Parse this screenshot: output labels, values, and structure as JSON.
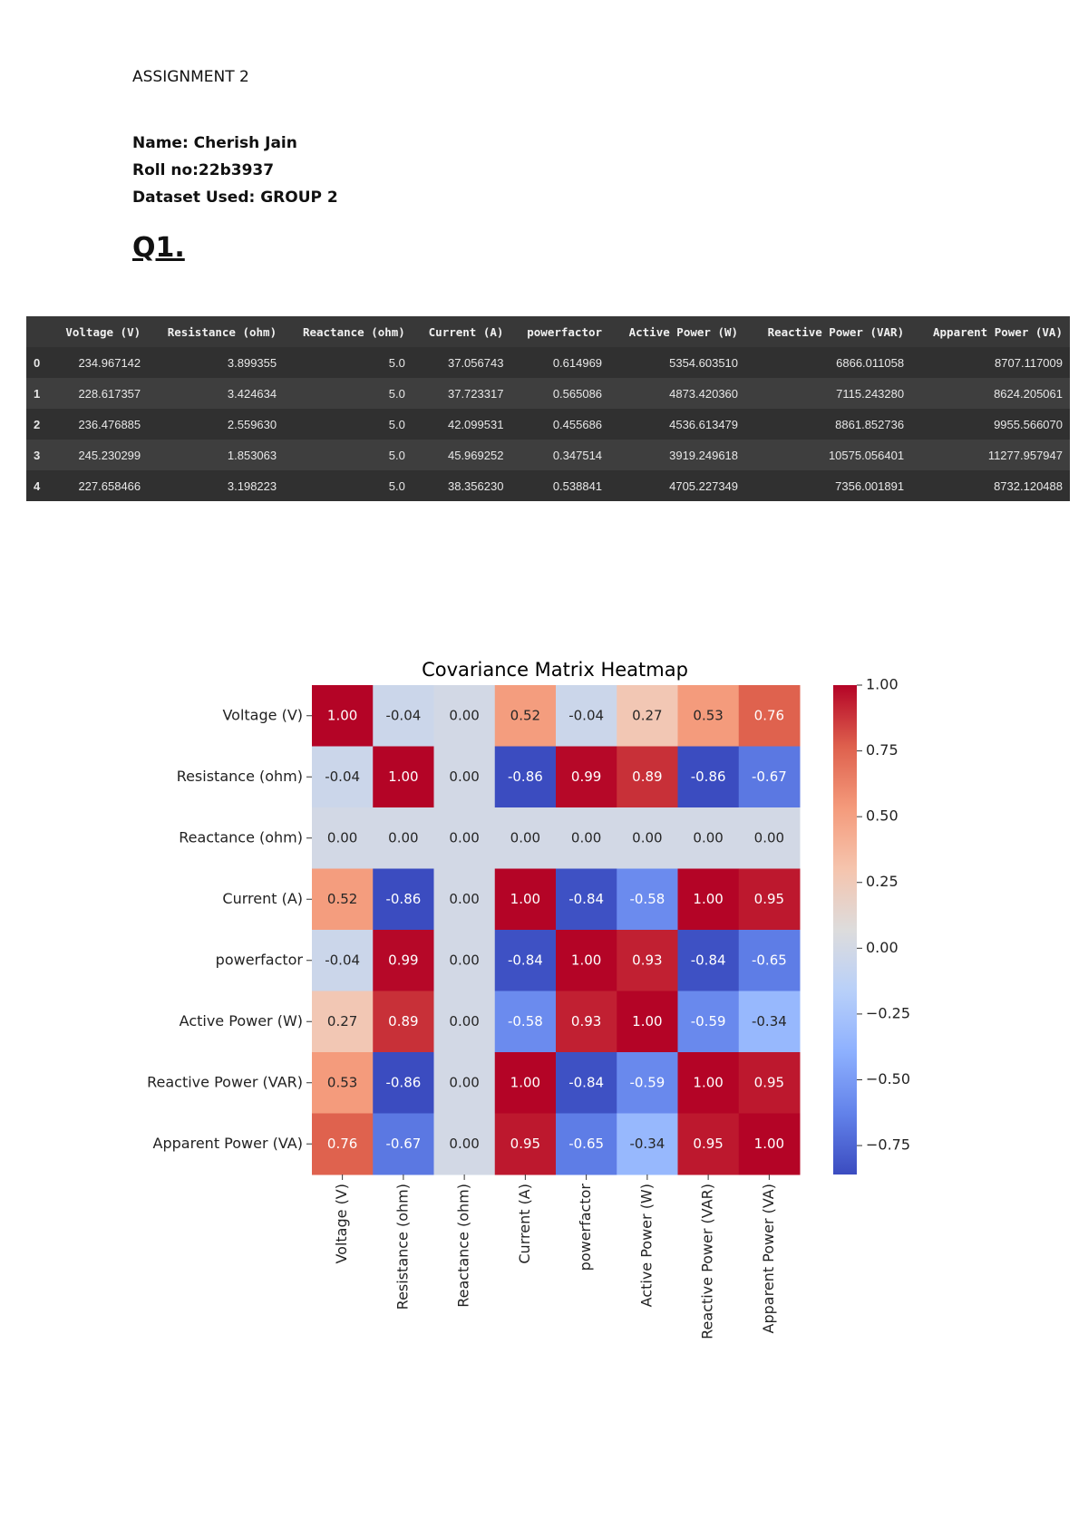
{
  "header": {
    "assignment": "ASSIGNMENT 2",
    "name": "Name: Cherish Jain",
    "roll": "Roll no:22b3937",
    "dataset": "Dataset Used: GROUP 2",
    "question": "Q1."
  },
  "table": {
    "columns": [
      "Voltage (V)",
      "Resistance (ohm)",
      "Reactance (ohm)",
      "Current (A)",
      "powerfactor",
      "Active Power (W)",
      "Reactive Power (VAR)",
      "Apparent Power (VA)"
    ],
    "rows": [
      [
        "0",
        "234.967142",
        "3.899355",
        "5.0",
        "37.056743",
        "0.614969",
        "5354.603510",
        "6866.011058",
        "8707.117009"
      ],
      [
        "1",
        "228.617357",
        "3.424634",
        "5.0",
        "37.723317",
        "0.565086",
        "4873.420360",
        "7115.243280",
        "8624.205061"
      ],
      [
        "2",
        "236.476885",
        "2.559630",
        "5.0",
        "42.099531",
        "0.455686",
        "4536.613479",
        "8861.852736",
        "9955.566070"
      ],
      [
        "3",
        "245.230299",
        "1.853063",
        "5.0",
        "45.969252",
        "0.347514",
        "3919.249618",
        "10575.056401",
        "11277.957947"
      ],
      [
        "4",
        "227.658466",
        "3.198223",
        "5.0",
        "38.356230",
        "0.538841",
        "4705.227349",
        "7356.001891",
        "8732.120488"
      ]
    ]
  },
  "chart_data": {
    "type": "heatmap",
    "title": "Covariance Matrix Heatmap",
    "categories": [
      "Voltage (V)",
      "Resistance (ohm)",
      "Reactance (ohm)",
      "Current (A)",
      "powerfactor",
      "Active Power (W)",
      "Reactive Power (VAR)",
      "Apparent Power (VA)"
    ],
    "y_categories": [
      "Voltage (V)",
      "Resistance (ohm)",
      "Reactance (ohm)",
      "Current (A)",
      "powerfactor",
      "Active Power (W)",
      "Reactive Power (VAR)",
      "Apparent Power (VA)"
    ],
    "values": [
      [
        1.0,
        -0.04,
        0.0,
        0.52,
        -0.04,
        0.27,
        0.53,
        0.76
      ],
      [
        -0.04,
        1.0,
        0.0,
        -0.86,
        0.99,
        0.89,
        -0.86,
        -0.67
      ],
      [
        0.0,
        0.0,
        0.0,
        0.0,
        0.0,
        0.0,
        0.0,
        0.0
      ],
      [
        0.52,
        -0.86,
        0.0,
        1.0,
        -0.84,
        -0.58,
        1.0,
        0.95
      ],
      [
        -0.04,
        0.99,
        0.0,
        -0.84,
        1.0,
        0.93,
        -0.84,
        -0.65
      ],
      [
        0.27,
        0.89,
        0.0,
        -0.58,
        0.93,
        1.0,
        -0.59,
        -0.34
      ],
      [
        0.53,
        -0.86,
        0.0,
        1.0,
        -0.84,
        -0.59,
        1.0,
        0.95
      ],
      [
        0.76,
        -0.67,
        0.0,
        0.95,
        -0.65,
        -0.34,
        0.95,
        1.0
      ]
    ],
    "value_labels": [
      [
        "1.00",
        "-0.04",
        "0.00",
        "0.52",
        "-0.04",
        "0.27",
        "0.53",
        "0.76"
      ],
      [
        "-0.04",
        "1.00",
        "0.00",
        "-0.86",
        "0.99",
        "0.89",
        "-0.86",
        "-0.67"
      ],
      [
        "0.00",
        "0.00",
        "0.00",
        "0.00",
        "0.00",
        "0.00",
        "0.00",
        "0.00"
      ],
      [
        "0.52",
        "-0.86",
        "0.00",
        "1.00",
        "-0.84",
        "-0.58",
        "1.00",
        "0.95"
      ],
      [
        "-0.04",
        "0.99",
        "0.00",
        "-0.84",
        "1.00",
        "0.93",
        "-0.84",
        "-0.65"
      ],
      [
        "0.27",
        "0.89",
        "0.00",
        "-0.58",
        "0.93",
        "1.00",
        "-0.59",
        "-0.34"
      ],
      [
        "0.53",
        "-0.86",
        "0.00",
        "1.00",
        "-0.84",
        "-0.59",
        "1.00",
        "0.95"
      ],
      [
        "0.76",
        "-0.67",
        "0.00",
        "0.95",
        "-0.65",
        "-0.34",
        "0.95",
        "1.00"
      ]
    ],
    "colormap": "coolwarm",
    "clim": [
      -0.86,
      1.0
    ],
    "cticks": [
      {
        "value": 1.0,
        "label": "1.00"
      },
      {
        "value": 0.75,
        "label": "0.75"
      },
      {
        "value": 0.5,
        "label": "0.50"
      },
      {
        "value": 0.25,
        "label": "0.25"
      },
      {
        "value": 0,
        "label": "0.00"
      },
      {
        "value": -0.25,
        "label": "−0.25"
      },
      {
        "value": -0.5,
        "label": "−0.50"
      },
      {
        "value": -0.75,
        "label": "−0.75"
      }
    ]
  }
}
